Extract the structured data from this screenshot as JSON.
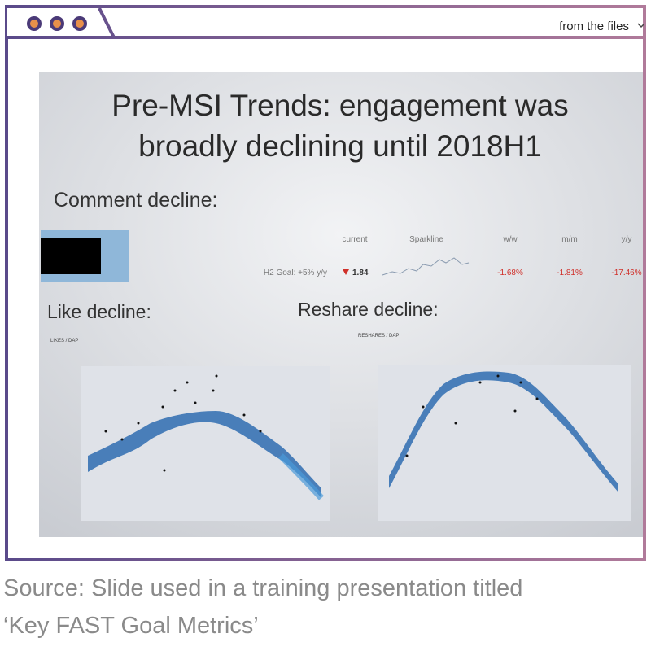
{
  "browser": {
    "tab_label": "from the files"
  },
  "slide": {
    "title_line1": "Pre-MSI Trends: engagement was",
    "title_line2": "broadly declining until 2018H1",
    "comment_section": {
      "heading": "Comment decline:",
      "headers": [
        "current",
        "Sparkline",
        "w/w",
        "m/m",
        "y/y"
      ],
      "goal": "H2 Goal: +5% y/y",
      "current": "1.84",
      "changes": [
        "-1.68%",
        "-1.81%",
        "-17.46%"
      ]
    },
    "like_chart": {
      "heading": "Like decline:",
      "label": "LIKES / DAP"
    },
    "reshare_chart": {
      "heading": "Reshare decline:",
      "label": "RESHARES / DAP"
    }
  },
  "caption": {
    "line1": "Source: Slide used in a training presentation titled",
    "line2": "‘Key FAST Goal Metrics’"
  }
}
